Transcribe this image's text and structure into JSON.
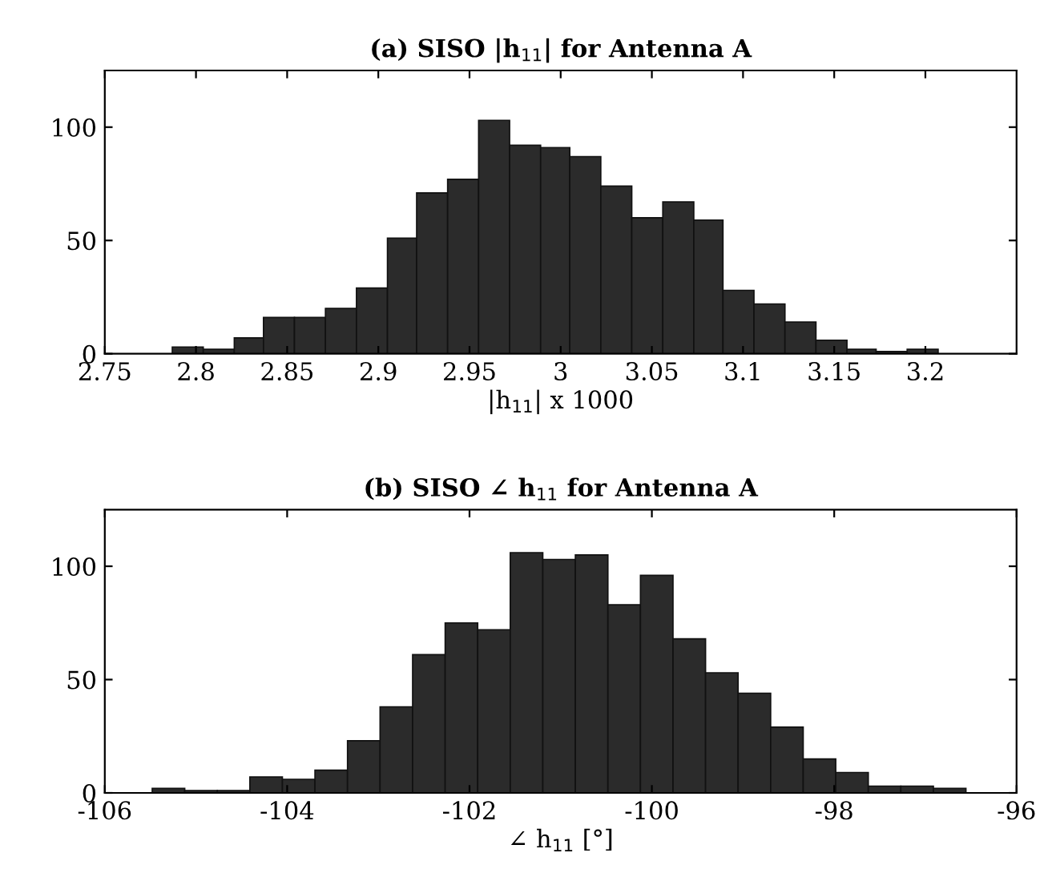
{
  "chart_data": [
    {
      "type": "histogram",
      "title": "(a) SISO |h$_{11}$| for Antenna A",
      "xlabel": "|h$_{11}$| x 1000",
      "color": "#2b2b2b",
      "bins": [
        2.787,
        2.804,
        2.821,
        2.837,
        2.854,
        2.871,
        2.888,
        2.905,
        2.921,
        2.938,
        2.955,
        2.972,
        2.989,
        3.005,
        3.022,
        3.039,
        3.056,
        3.073,
        3.089,
        3.106,
        3.123,
        3.14,
        3.157,
        3.173,
        3.19,
        3.207
      ],
      "values": [
        3,
        2,
        7,
        16,
        16,
        20,
        29,
        51,
        71,
        77,
        103,
        92,
        91,
        87,
        74,
        60,
        67,
        59,
        28,
        22,
        14,
        6,
        2,
        1,
        2
      ],
      "xlim": [
        2.75,
        3.25
      ],
      "xticks": [
        2.75,
        2.8,
        2.85,
        2.9,
        2.95,
        3,
        3.05,
        3.1,
        3.15,
        3.2
      ],
      "ylim": [
        0,
        125
      ],
      "yticks": [
        0,
        50,
        100
      ],
      "grid": false,
      "legend": false
    },
    {
      "type": "histogram",
      "title": "(b) SISO ∠ h$_{11}$ for Antenna A",
      "xlabel": "∠ h$_{11}$ [°]",
      "color": "#2b2b2b",
      "bins": [
        -105.48,
        -105.123,
        -104.766,
        -104.409,
        -104.052,
        -103.695,
        -103.338,
        -102.981,
        -102.624,
        -102.267,
        -101.91,
        -101.553,
        -101.196,
        -100.839,
        -100.482,
        -100.125,
        -99.768,
        -99.411,
        -99.054,
        -98.697,
        -98.34,
        -97.983,
        -97.626,
        -97.269,
        -96.912,
        -96.555
      ],
      "values": [
        2,
        1,
        1,
        7,
        6,
        10,
        23,
        38,
        61,
        75,
        72,
        106,
        103,
        105,
        83,
        96,
        68,
        53,
        44,
        29,
        15,
        9,
        3,
        3,
        2
      ],
      "xlim": [
        -106,
        -96
      ],
      "xticks": [
        -106,
        -104,
        -102,
        -100,
        -98,
        -96
      ],
      "ylim": [
        0,
        125
      ],
      "yticks": [
        0,
        50,
        100
      ],
      "grid": false,
      "legend": false
    }
  ]
}
